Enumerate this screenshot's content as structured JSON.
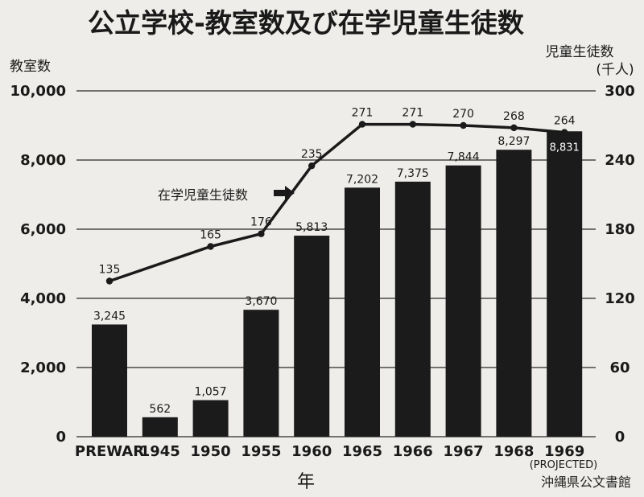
{
  "chart_data": {
    "type": "bar",
    "title": "公立学校-教室数及び在学児童生徒数",
    "ylabel": "教室数",
    "y2label": "児童生徒数",
    "y2unit": "(千人)",
    "xlabel": "年",
    "ylim": [
      0,
      10000
    ],
    "y2lim": [
      0,
      300
    ],
    "yticks": [
      "0",
      "2,000",
      "4,000",
      "6,000",
      "8,000",
      "10,000"
    ],
    "y2ticks": [
      "0",
      "60",
      "120",
      "180",
      "240",
      "300"
    ],
    "grid": true,
    "categories": [
      "PREWAR",
      "1945",
      "1950",
      "1955",
      "1960",
      "1965",
      "1966",
      "1967",
      "1968",
      "1969"
    ],
    "category_note": "(PROJECTED)",
    "series": [
      {
        "name": "教室数",
        "type": "bar",
        "axis": "left",
        "values": [
          3245,
          562,
          1057,
          3670,
          5813,
          7202,
          7375,
          7844,
          8297,
          8831
        ],
        "labels": [
          "3,245",
          "562",
          "1,057",
          "3,670",
          "5,813",
          "7,202",
          "7,375",
          "7,844",
          "8,297",
          "8,831"
        ]
      },
      {
        "name": "在学児童生徒数",
        "type": "line",
        "axis": "right",
        "values": [
          135,
          null,
          165,
          176,
          235,
          271,
          271,
          270,
          268,
          264
        ],
        "labels": [
          "135",
          "",
          "165",
          "176",
          "235",
          "271",
          "271",
          "270",
          "268",
          "264"
        ]
      }
    ],
    "line_annotation": "在学児童生徒数"
  },
  "watermark": "沖縄県公文書館"
}
